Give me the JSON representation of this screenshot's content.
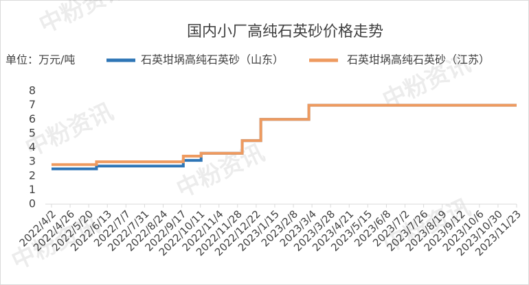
{
  "chart_data": {
    "type": "line",
    "title": "国内小厂高纯石英砂价格走势",
    "unit_label": "单位：万元/吨",
    "watermark": "中粉资讯",
    "categories": [
      "2022/4/2",
      "2022/4/26",
      "2022/5/20",
      "2022/6/13",
      "2022/7/7",
      "2022/7/31",
      "2022/8/24",
      "2022/9/17",
      "2022/10/11",
      "2022/11/4",
      "2022/11/28",
      "2022/12/22",
      "2023/1/15",
      "2023/2/8",
      "2023/3/4",
      "2023/3/28",
      "2023/4/21",
      "2023/5/15",
      "2023/6/8",
      "2023/7/2",
      "2023/7/26",
      "2023/8/19",
      "2023/9/12",
      "2023/10/6",
      "2023/10/30",
      "2023/11/23"
    ],
    "series": [
      {
        "name": "石英坩埚高纯石英砂（山东）",
        "color": "#2e75b6",
        "step": true,
        "x": [
          "2022/4/2",
          "2022/5/30",
          "2022/9/19",
          "2022/10/12",
          "2022/12/4",
          "2022/12/28",
          "2023/2/28",
          "2023/11/23"
        ],
        "values": [
          2.5,
          2.7,
          3.1,
          3.6,
          4.5,
          6,
          7,
          7
        ]
      },
      {
        "name": "石英坩埚高纯石英砂（江苏）",
        "color": "#ee9a5f",
        "step": true,
        "x": [
          "2022/4/2",
          "2022/5/30",
          "2022/9/19",
          "2022/10/12",
          "2022/12/4",
          "2022/12/28",
          "2023/2/28",
          "2023/11/23"
        ],
        "values": [
          2.8,
          3.0,
          3.4,
          3.6,
          4.5,
          6,
          7,
          7
        ]
      }
    ],
    "ylim": [
      0,
      8
    ],
    "yticks": [
      0,
      1,
      2,
      3,
      4,
      5,
      6,
      7,
      8
    ],
    "grid": false
  }
}
